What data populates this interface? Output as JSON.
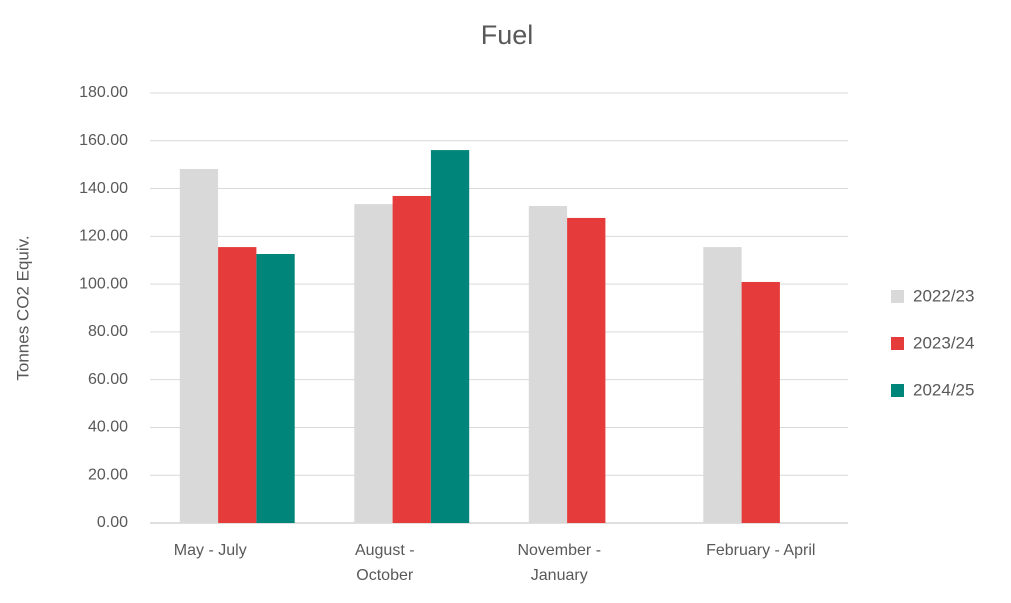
{
  "chart_data": {
    "type": "bar",
    "title": "Fuel",
    "y_label": "Tonnes CO2 Equiv.",
    "categories": [
      "May - July",
      "August - October",
      "November - January",
      "February - April"
    ],
    "series": [
      {
        "name": "2022/23",
        "color": "#d9d9d9",
        "values": [
          148.2,
          133.5,
          132.7,
          115.5
        ]
      },
      {
        "name": "2023/24",
        "color": "#e63b3b",
        "values": [
          115.5,
          136.9,
          127.7,
          100.9
        ]
      },
      {
        "name": "2024/25",
        "color": "#00857a",
        "values": [
          112.6,
          156.1,
          null,
          null
        ]
      }
    ],
    "ylim": [
      0,
      180
    ],
    "yticks": [
      {
        "value": 0,
        "label": "0.00"
      },
      {
        "value": 20,
        "label": "20.00"
      },
      {
        "value": 40,
        "label": "40.00"
      },
      {
        "value": 60,
        "label": "60.00"
      },
      {
        "value": 80,
        "label": "80.00"
      },
      {
        "value": 100,
        "label": "100.00"
      },
      {
        "value": 120,
        "label": "120.00"
      },
      {
        "value": 140,
        "label": "140.00"
      },
      {
        "value": 160,
        "label": "160.00"
      },
      {
        "value": 180,
        "label": "180.00"
      }
    ],
    "grid": true,
    "legend": "right"
  }
}
